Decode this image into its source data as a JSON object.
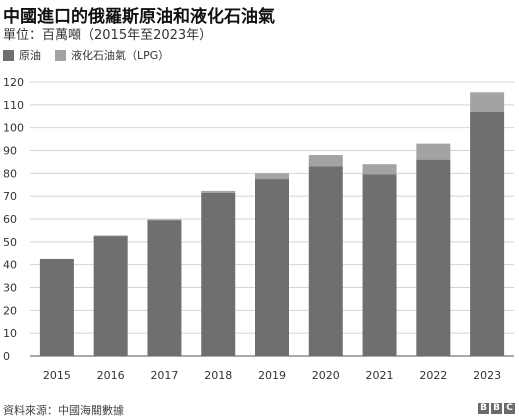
{
  "header": {
    "title": "中國進口的俄羅斯原油和液化石油氣",
    "subtitle": "單位：百萬噸（2015年至2023年）"
  },
  "footer": {
    "source": "資料來源：中國海關數據",
    "logo": [
      "B",
      "B",
      "C"
    ]
  },
  "colors": {
    "crude": "#6f6f6f",
    "lpg": "#a3a3a3",
    "grid": "#d4d4d4"
  },
  "chart_data": {
    "type": "bar",
    "stacked": true,
    "title": "中國進口的俄羅斯原油和液化石油氣",
    "subtitle": "單位：百萬噸（2015年至2023年）",
    "categories": [
      "2015",
      "2016",
      "2017",
      "2018",
      "2019",
      "2020",
      "2021",
      "2022",
      "2023"
    ],
    "series": [
      {
        "name": "原油",
        "values": [
          42.5,
          52.5,
          59.5,
          71.5,
          77.5,
          83,
          79.5,
          86,
          107
        ]
      },
      {
        "name": "液化石油氣（LPG）",
        "values": [
          0,
          0.3,
          0.3,
          0.8,
          2.5,
          5,
          4.5,
          7,
          8.5
        ]
      }
    ],
    "ylim": [
      0,
      120
    ],
    "yticks": [
      0,
      10,
      20,
      30,
      40,
      50,
      60,
      70,
      80,
      90,
      100,
      110,
      120
    ],
    "grid": true,
    "legend": "top-left"
  }
}
